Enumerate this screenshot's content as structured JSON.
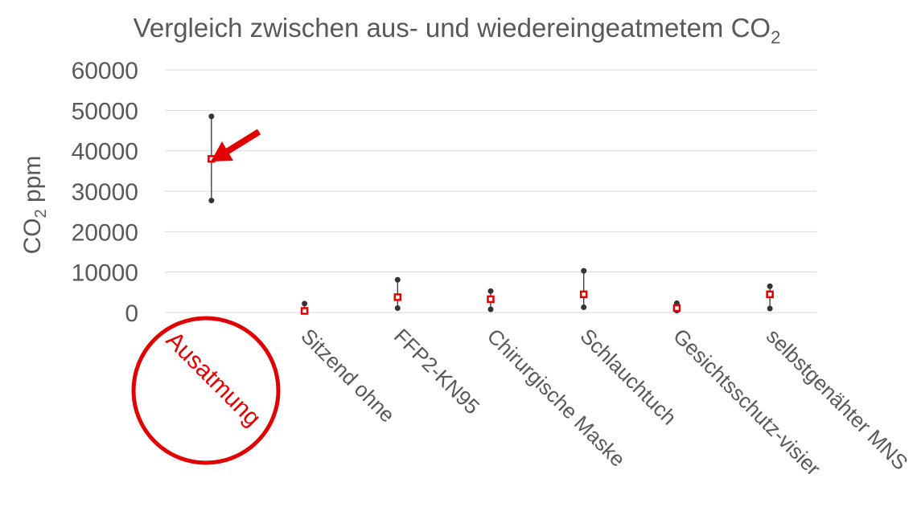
{
  "chart_data": {
    "type": "scatter",
    "title": "Vergleich zwischen aus- und wiedereingeatmetem CO",
    "title_subscript": "2",
    "ylabel": "CO",
    "ylabel_subscript": "2",
    "ylabel_suffix": " ppm",
    "ylim": [
      0,
      60000
    ],
    "yticks": [
      "0",
      "10000",
      "20000",
      "30000",
      "40000",
      "50000",
      "60000"
    ],
    "grid": true,
    "categories": [
      "Ausatmung",
      "Sitzend ohne",
      "FFP2-KN95",
      "Chirurgische Maske",
      "Schlauchtuch",
      "Gesichtsschutz-visier",
      "selbstgenähter MNS"
    ],
    "series": [
      {
        "role": "max",
        "values": [
          48500,
          2200,
          8100,
          5300,
          10300,
          2300,
          6500
        ]
      },
      {
        "role": "mean",
        "values": [
          38000,
          400,
          3800,
          3300,
          4500,
          1100,
          4500
        ]
      },
      {
        "role": "min",
        "values": [
          27700,
          200,
          1100,
          800,
          1300,
          500,
          1000
        ]
      }
    ],
    "colors": {
      "range": "#333333",
      "mean": "#e00000",
      "highlight": "#e00000",
      "grid": "#d9d9d9",
      "text": "#595959"
    },
    "annotations": {
      "highlighted_category": "Ausatmung",
      "circle_around_label": true,
      "arrow_to_mean": true
    }
  }
}
